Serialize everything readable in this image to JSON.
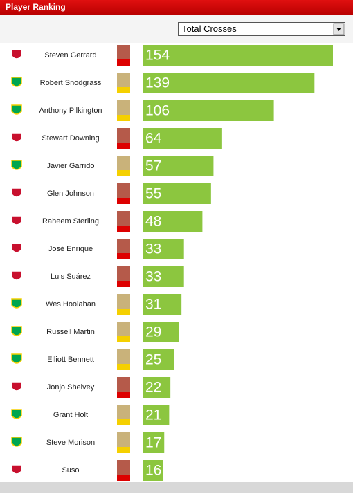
{
  "chart_data": {
    "type": "bar",
    "title": "Player Ranking",
    "selected_metric": "Total Crosses",
    "categories": [
      "Steven Gerrard",
      "Robert Snodgrass",
      "Anthony Pilkington",
      "Stewart Downing",
      "Javier Garrido",
      "Glen Johnson",
      "Raheem Sterling",
      "José Enrique",
      "Luis Suárez",
      "Wes Hoolahan",
      "Russell Martin",
      "Elliott Bennett",
      "Jonjo Shelvey",
      "Grant Holt",
      "Steve Morison",
      "Suso"
    ],
    "values": [
      154,
      139,
      106,
      64,
      57,
      55,
      48,
      33,
      33,
      31,
      29,
      25,
      22,
      21,
      17,
      16
    ],
    "color": "#8cc63f",
    "crest_colors": [
      "#c8102e",
      "#00a650",
      "#00a650",
      "#c8102e",
      "#00a650",
      "#c8102e",
      "#c8102e",
      "#c8102e",
      "#c8102e",
      "#00a650",
      "#00a650",
      "#00a650",
      "#c8102e",
      "#00a650",
      "#00a650",
      "#c8102e"
    ]
  }
}
